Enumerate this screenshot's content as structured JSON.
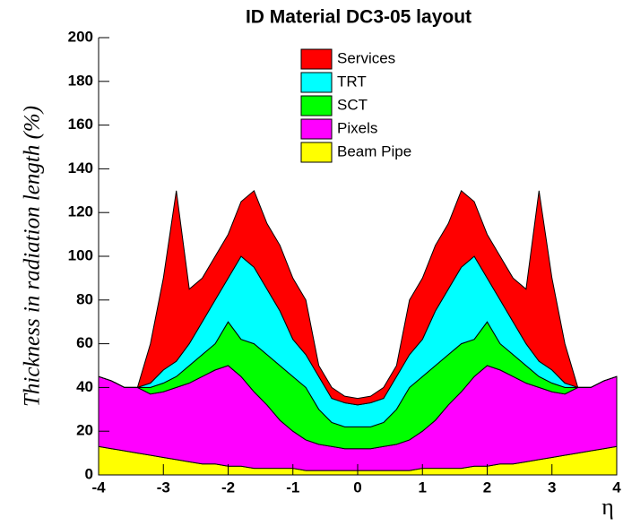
{
  "chart_data": {
    "type": "stacked_area",
    "title": "ID Material DC3-05 layout",
    "ylabel": "Thickness in radiation length (%)",
    "xlabel": "η",
    "x": [
      -4,
      -3.8,
      -3.6,
      -3.4,
      -3.2,
      -3,
      -2.8,
      -2.6,
      -2.4,
      -2.2,
      -2,
      -1.8,
      -1.6,
      -1.4,
      -1.2,
      -1,
      -0.8,
      -0.6,
      -0.4,
      -0.2,
      0,
      0.2,
      0.4,
      0.6,
      0.8,
      1,
      1.2,
      1.4,
      1.6,
      1.8,
      2,
      2.2,
      2.4,
      2.6,
      2.8,
      3,
      3.2,
      3.4,
      3.6,
      3.8,
      4
    ],
    "series": [
      {
        "name": "Services",
        "color": "#ff0000",
        "values": [
          0,
          0,
          0,
          0,
          18,
          42,
          78,
          25,
          20,
          20,
          20,
          25,
          35,
          30,
          30,
          28,
          25,
          5,
          5,
          3,
          3,
          3,
          5,
          5,
          25,
          28,
          30,
          30,
          35,
          25,
          20,
          20,
          20,
          25,
          78,
          42,
          18,
          0,
          0,
          0,
          0
        ]
      },
      {
        "name": "TRT",
        "color": "#00ffff",
        "values": [
          0,
          0,
          0,
          0,
          2,
          6,
          7,
          10,
          15,
          20,
          20,
          38,
          35,
          30,
          25,
          17,
          15,
          15,
          11,
          11,
          10,
          11,
          11,
          15,
          15,
          17,
          25,
          30,
          35,
          38,
          20,
          20,
          15,
          10,
          7,
          6,
          2,
          0,
          0,
          0,
          0
        ]
      },
      {
        "name": "SCT",
        "color": "#00ff00",
        "values": [
          0,
          0,
          0,
          0,
          3,
          4,
          5,
          8,
          10,
          12,
          20,
          17,
          22,
          23,
          25,
          25,
          24,
          16,
          11,
          10,
          10,
          10,
          11,
          16,
          24,
          25,
          25,
          23,
          22,
          17,
          20,
          12,
          10,
          8,
          5,
          4,
          3,
          0,
          0,
          0,
          0
        ]
      },
      {
        "name": "Pixels",
        "color": "#ff00ff",
        "values": [
          32,
          31,
          29,
          30,
          28,
          30,
          33,
          36,
          40,
          43,
          46,
          41,
          35,
          29,
          22,
          17,
          14,
          12,
          11,
          10,
          10,
          10,
          11,
          12,
          14,
          17,
          22,
          29,
          35,
          41,
          46,
          43,
          40,
          36,
          33,
          30,
          28,
          30,
          29,
          31,
          32
        ]
      },
      {
        "name": "Beam Pipe",
        "color": "#ffff00",
        "values": [
          13,
          12,
          11,
          10,
          9,
          8,
          7,
          6,
          5,
          5,
          4,
          4,
          3,
          3,
          3,
          3,
          2,
          2,
          2,
          2,
          2,
          2,
          2,
          2,
          2,
          3,
          3,
          3,
          3,
          4,
          4,
          5,
          5,
          6,
          7,
          8,
          9,
          10,
          11,
          12,
          13
        ]
      }
    ],
    "xlim": [
      -4,
      4
    ],
    "xticks": [
      -4,
      -3,
      -2,
      -1,
      0,
      1,
      2,
      3,
      4
    ],
    "ylim": [
      0,
      200
    ],
    "yticks": [
      0,
      20,
      40,
      60,
      80,
      100,
      120,
      140,
      160,
      180,
      200
    ]
  }
}
